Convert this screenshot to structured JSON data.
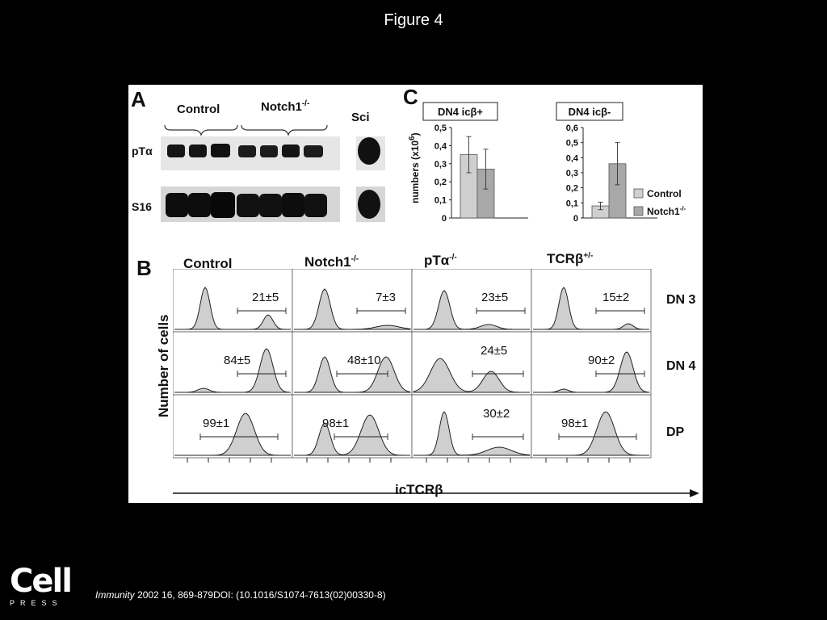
{
  "slide": {
    "title": "Figure 4"
  },
  "panel_a": {
    "label": "A",
    "groups": [
      "Control",
      "Notch1",
      "Sci"
    ],
    "notch_sup": "-/-",
    "rows": [
      "pTα",
      "S16"
    ]
  },
  "panel_c": {
    "label": "C",
    "ylabel": "numbers (x10",
    "ylabel_sup": "6",
    "ylabel_end": ")",
    "legend": [
      "Control",
      "Notch1"
    ],
    "legend_sup": "-/-",
    "colors": {
      "control": "#cfcfcf",
      "notch": "#a8a8a8"
    }
  },
  "panel_b": {
    "label": "B",
    "columns": [
      "Control",
      "Notch1",
      "pTα",
      "TCRβ"
    ],
    "column_sups": [
      "",
      "-/-",
      "-/-",
      "+/-"
    ],
    "rows": [
      "DN 3",
      "DN 4",
      "DP"
    ],
    "values": [
      [
        "21±5",
        "7±3",
        "23±5",
        "15±2"
      ],
      [
        "84±5",
        "48±10",
        "24±5",
        "90±2"
      ],
      [
        "99±1",
        "98±1",
        "30±2",
        "98±1"
      ]
    ],
    "ylabel": "Number of cells",
    "xlabel": "icTCRβ"
  },
  "chart_data": [
    {
      "type": "bar",
      "title": "DN4 icβ+",
      "ylabel": "numbers (x10^6)",
      "ylim": [
        0,
        0.5
      ],
      "yticks": [
        "0",
        "0,1",
        "0,2",
        "0,3",
        "0,4",
        "0,5"
      ],
      "series": [
        {
          "name": "Control",
          "values": [
            0.35
          ],
          "error": [
            0.1
          ]
        },
        {
          "name": "Notch1-/-",
          "values": [
            0.27
          ],
          "error": [
            0.11
          ]
        }
      ]
    },
    {
      "type": "bar",
      "title": "DN4 icβ-",
      "ylim": [
        0,
        0.6
      ],
      "yticks": [
        "0",
        "0,1",
        "0,2",
        "0,3",
        "0,4",
        "0,5",
        "0,6"
      ],
      "series": [
        {
          "name": "Control",
          "values": [
            0.08
          ],
          "error": [
            0.025
          ]
        },
        {
          "name": "Notch1-/-",
          "values": [
            0.36
          ],
          "error": [
            0.14
          ]
        }
      ]
    }
  ],
  "footer": {
    "logo_main": "Cell",
    "logo_sub": "PRESS",
    "journal": "Immunity",
    "citation": " 2002 16, 869-879DOI: (10.1016/S1074-7613(02)00330-8)"
  }
}
